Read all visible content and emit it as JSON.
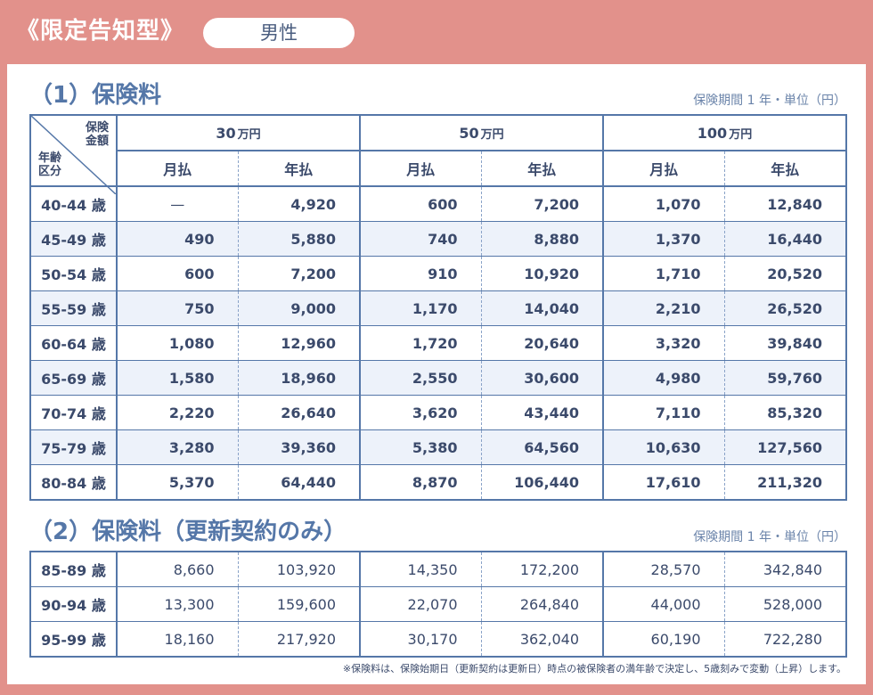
{
  "header": {
    "plan_title": "《限定告知型》",
    "gender": "男性"
  },
  "section1": {
    "title": "（1）保険料",
    "note": "保険期間 1 年・単位（円）",
    "corner_top": "保険\n金額",
    "corner_bottom": "年齢\n区分",
    "amounts": [
      {
        "value": "30",
        "unit": "万円"
      },
      {
        "value": "50",
        "unit": "万円"
      },
      {
        "value": "100",
        "unit": "万円"
      }
    ],
    "pay_labels": {
      "monthly": "月払",
      "yearly": "年払"
    },
    "rows": [
      {
        "age": "40-44 歳",
        "cells": [
          "—",
          "4,920",
          "600",
          "7,200",
          "1,070",
          "12,840"
        ]
      },
      {
        "age": "45-49 歳",
        "cells": [
          "490",
          "5,880",
          "740",
          "8,880",
          "1,370",
          "16,440"
        ]
      },
      {
        "age": "50-54 歳",
        "cells": [
          "600",
          "7,200",
          "910",
          "10,920",
          "1,710",
          "20,520"
        ]
      },
      {
        "age": "55-59 歳",
        "cells": [
          "750",
          "9,000",
          "1,170",
          "14,040",
          "2,210",
          "26,520"
        ]
      },
      {
        "age": "60-64 歳",
        "cells": [
          "1,080",
          "12,960",
          "1,720",
          "20,640",
          "3,320",
          "39,840"
        ]
      },
      {
        "age": "65-69 歳",
        "cells": [
          "1,580",
          "18,960",
          "2,550",
          "30,600",
          "4,980",
          "59,760"
        ]
      },
      {
        "age": "70-74 歳",
        "cells": [
          "2,220",
          "26,640",
          "3,620",
          "43,440",
          "7,110",
          "85,320"
        ]
      },
      {
        "age": "75-79 歳",
        "cells": [
          "3,280",
          "39,360",
          "5,380",
          "64,560",
          "10,630",
          "127,560"
        ]
      },
      {
        "age": "80-84 歳",
        "cells": [
          "5,370",
          "64,440",
          "8,870",
          "106,440",
          "17,610",
          "211,320"
        ]
      }
    ]
  },
  "section2": {
    "title": "（2）保険料（更新契約のみ）",
    "note": "保険期間 1 年・単位（円）",
    "rows": [
      {
        "age": "85-89 歳",
        "cells": [
          "8,660",
          "103,920",
          "14,350",
          "172,200",
          "28,570",
          "342,840"
        ]
      },
      {
        "age": "90-94 歳",
        "cells": [
          "13,300",
          "159,600",
          "22,070",
          "264,840",
          "44,000",
          "528,000"
        ]
      },
      {
        "age": "95-99 歳",
        "cells": [
          "18,160",
          "217,920",
          "30,170",
          "362,040",
          "60,190",
          "722,280"
        ]
      }
    ]
  },
  "footnote": "※保険料は、保険始期日（更新契約は更新日）時点の被保険者の満年齢で決定し、5歳刻みで変動（上昇）します。"
}
